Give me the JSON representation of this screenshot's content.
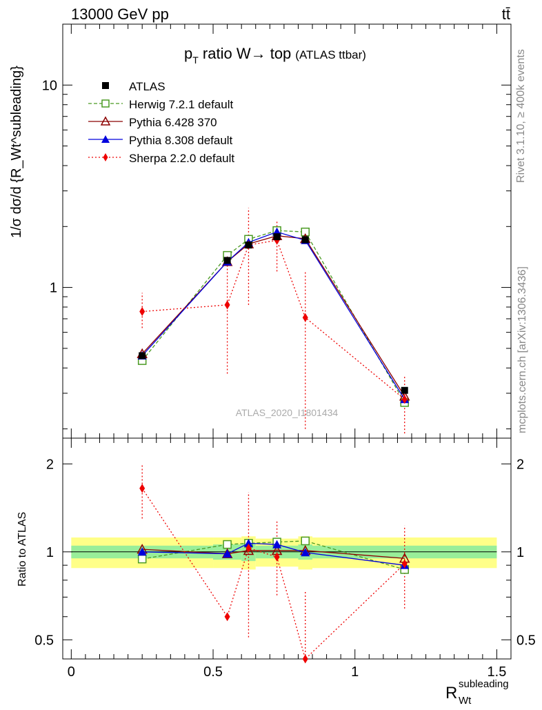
{
  "header": {
    "left": "13000 GeV pp",
    "right": "tt̄"
  },
  "side": {
    "rivet": "Rivet 3.1.10, ≥ 400k events",
    "mcplots": "mcplots.cern.ch [arXiv:1306.3436]"
  },
  "main": {
    "title_main": "p",
    "title_sub": "T",
    "title_rest": " ratio W→ top",
    "title_small": "(ATLAS ttbar)",
    "ylabel": "1/σ dσ/d {R_Wt^subleading}",
    "watermark": "ATLAS_2020_I1801434",
    "yticks": [
      {
        "value": 1,
        "label": "1"
      },
      {
        "value": 10,
        "label": "10"
      }
    ]
  },
  "ratio": {
    "ylabel": "Ratio to ATLAS",
    "yticks": [
      {
        "value": 0.5,
        "label": "0.5"
      },
      {
        "value": 1,
        "label": "1"
      },
      {
        "value": 2,
        "label": "2"
      }
    ]
  },
  "xaxis": {
    "label_main": "R",
    "label_sub": "Wt",
    "label_sup": "subleading",
    "ticks": [
      {
        "value": 0,
        "label": "0"
      },
      {
        "value": 0.5,
        "label": "0.5"
      },
      {
        "value": 1,
        "label": "1"
      },
      {
        "value": 1.5,
        "label": "1.5"
      }
    ]
  },
  "chart_data": {
    "type": "line",
    "xlim": [
      -0.03,
      1.55
    ],
    "ylim": [
      0.18,
      20
    ],
    "ylog": true,
    "ratio_ylim": [
      0.43,
      2.45
    ],
    "ratio_ylog": true,
    "x": [
      0.25,
      0.55,
      0.625,
      0.725,
      0.825,
      1.175
    ],
    "bins": [
      [
        0.0,
        0.5
      ],
      [
        0.5,
        0.6
      ],
      [
        0.6,
        0.65
      ],
      [
        0.65,
        0.8
      ],
      [
        0.8,
        0.85
      ],
      [
        0.85,
        1.5
      ]
    ],
    "data": {
      "name": "ATLAS",
      "values": [
        0.46,
        1.36,
        1.62,
        1.78,
        1.72,
        0.31
      ],
      "band_inner": [
        0.05,
        0.06,
        0.07,
        0.05,
        0.06,
        0.05
      ],
      "band_outer": [
        0.12,
        0.12,
        0.13,
        0.11,
        0.13,
        0.12
      ]
    },
    "series": [
      {
        "name": "Herwig 7.2.1 default",
        "color": "#4a9a22",
        "style": "dashed",
        "marker": "open-square",
        "values": [
          0.435,
          1.44,
          1.73,
          1.91,
          1.88,
          0.27
        ],
        "ratio": [
          0.945,
          1.06,
          1.07,
          1.08,
          1.09,
          0.87
        ]
      },
      {
        "name": "Pythia 6.428 370",
        "color": "#8b0000",
        "style": "solid",
        "marker": "open-triangle",
        "values": [
          0.47,
          1.34,
          1.64,
          1.8,
          1.74,
          0.29
        ],
        "ratio": [
          1.02,
          0.985,
          1.01,
          1.01,
          1.01,
          0.95
        ]
      },
      {
        "name": "Pythia 8.308 default",
        "color": "#0000dd",
        "style": "solid",
        "marker": "filled-triangle",
        "values": [
          0.46,
          1.34,
          1.67,
          1.88,
          1.71,
          0.28
        ],
        "ratio": [
          1.0,
          0.985,
          1.07,
          1.06,
          0.995,
          0.9
        ]
      },
      {
        "name": "Sherpa 2.2.0 default",
        "color": "#ee0000",
        "style": "dotted",
        "marker": "filled-diamond",
        "values": [
          0.76,
          0.82,
          1.62,
          1.71,
          0.71,
          0.28
        ],
        "err_low": [
          0.63,
          0.375,
          0.82,
          1.2,
          0.2,
          0.19
        ],
        "err_high": [
          0.94,
          1.3,
          2.47,
          2.14,
          1.2,
          0.37
        ],
        "ratio": [
          1.65,
          0.6,
          1.03,
          0.96,
          0.41,
          0.91
        ],
        "ratio_err_low": [
          1.3,
          0.43,
          0.51,
          0.71,
          0.43,
          0.64
        ],
        "ratio_err_high": [
          2.0,
          0.43,
          1.6,
          1.27,
          0.73,
          1.23
        ]
      }
    ]
  }
}
